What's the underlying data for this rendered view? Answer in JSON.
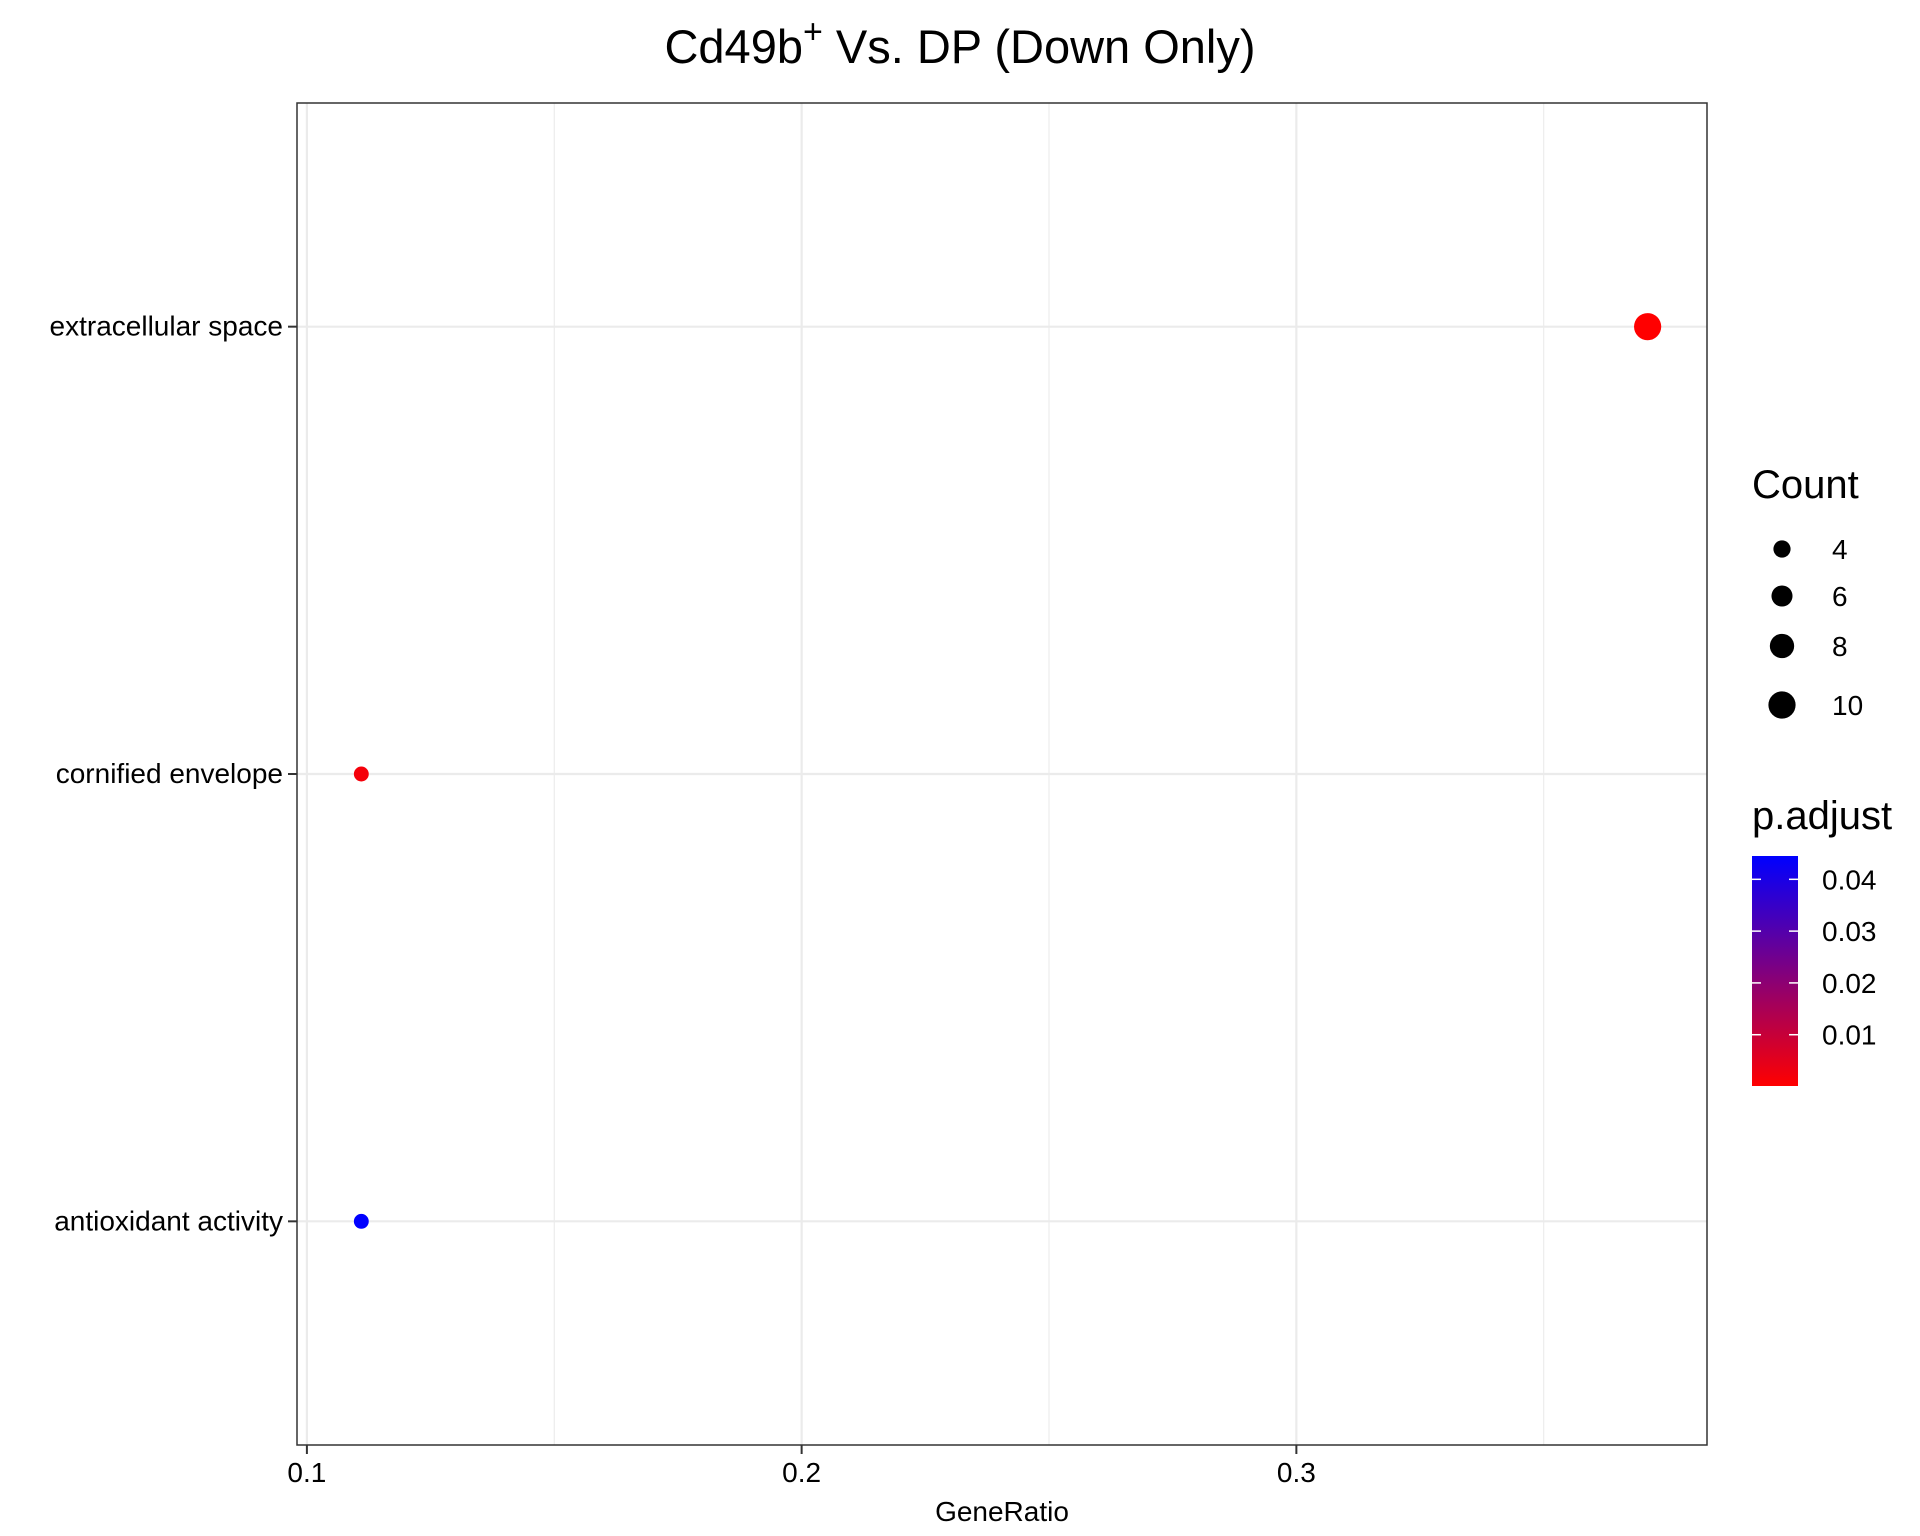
{
  "chart_data": {
    "type": "scatter",
    "title": "Cd49b",
    "title_superscript": "+",
    "title_rest": " Vs. DP (Down Only)",
    "xlabel": "GeneRatio",
    "ylabel": "",
    "xlim": [
      0.098,
      0.383
    ],
    "x_ticks": [
      0.1,
      0.2,
      0.3
    ],
    "x_tick_labels": [
      "0.1",
      "0.2",
      "0.3"
    ],
    "categories": [
      "antioxidant activity",
      "cornified envelope",
      "extracellular space"
    ],
    "points": [
      {
        "category": "extracellular space",
        "x": 0.371,
        "count": 10,
        "p_adjust": 0.0001,
        "color": "#FF0000"
      },
      {
        "category": "cornified envelope",
        "x": 0.111,
        "count": 3,
        "p_adjust": 0.0012,
        "color": "#F5000A"
      },
      {
        "category": "antioxidant activity",
        "x": 0.111,
        "count": 3,
        "p_adjust": 0.044,
        "color": "#0000FF"
      }
    ],
    "grid": true,
    "legend_position": "right",
    "size_legend": {
      "title": "Count",
      "items": [
        {
          "label": "4",
          "value": 4
        },
        {
          "label": "6",
          "value": 6
        },
        {
          "label": "8",
          "value": 8
        },
        {
          "label": "10",
          "value": 10
        }
      ]
    },
    "color_legend": {
      "title": "p.adjust",
      "range": [
        0.0001,
        0.0445
      ],
      "low_color": "#FF0000",
      "high_color": "#0000FF",
      "ticks": [
        {
          "label": "0.04",
          "value": 0.04
        },
        {
          "label": "0.03",
          "value": 0.03
        },
        {
          "label": "0.02",
          "value": 0.02
        },
        {
          "label": "0.01",
          "value": 0.01
        }
      ]
    }
  }
}
